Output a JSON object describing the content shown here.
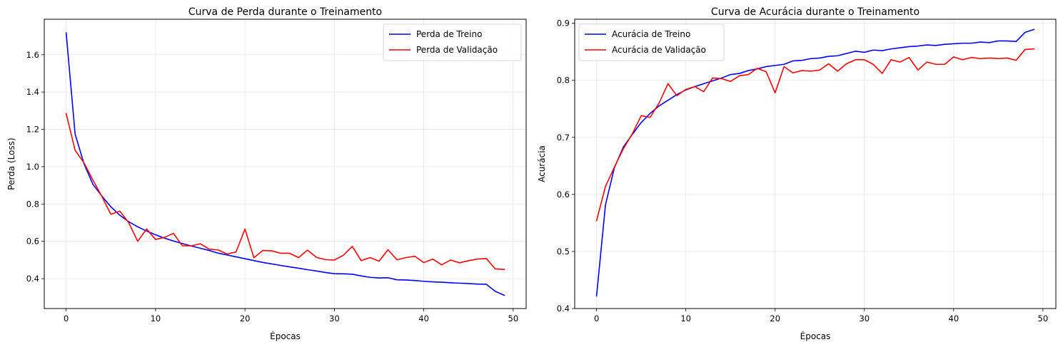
{
  "chart_data": [
    {
      "type": "line",
      "title": "Curva de Perda durante o Treinamento",
      "xlabel": "Épocas",
      "ylabel": "Perda (Loss)",
      "xlim": [
        -2.45,
        51.45
      ],
      "ylim": [
        0.24,
        1.79
      ],
      "xticks": [
        0,
        10,
        20,
        30,
        40,
        50
      ],
      "yticks": [
        0.4,
        0.6,
        0.8,
        1.0,
        1.2,
        1.4,
        1.6
      ],
      "ytick_labels": [
        "0.4",
        "0.6",
        "0.8",
        "1.0",
        "1.2",
        "1.4",
        "1.6"
      ],
      "grid": true,
      "legend": "upper-right",
      "x": [
        0,
        1,
        2,
        3,
        4,
        5,
        6,
        7,
        8,
        9,
        10,
        11,
        12,
        13,
        14,
        15,
        16,
        17,
        18,
        19,
        20,
        21,
        22,
        23,
        24,
        25,
        26,
        27,
        28,
        29,
        30,
        31,
        32,
        33,
        34,
        35,
        36,
        37,
        38,
        39,
        40,
        41,
        42,
        43,
        44,
        45,
        46,
        47,
        48,
        49
      ],
      "series": [
        {
          "name": "Perda de Treino",
          "color": "#0000ff",
          "values": [
            1.717,
            1.175,
            1.015,
            0.905,
            0.842,
            0.785,
            0.74,
            0.705,
            0.678,
            0.655,
            0.635,
            0.617,
            0.602,
            0.588,
            0.575,
            0.563,
            0.551,
            0.537,
            0.527,
            0.517,
            0.507,
            0.497,
            0.487,
            0.479,
            0.471,
            0.463,
            0.456,
            0.448,
            0.441,
            0.433,
            0.427,
            0.426,
            0.424,
            0.415,
            0.407,
            0.404,
            0.405,
            0.394,
            0.393,
            0.39,
            0.386,
            0.383,
            0.381,
            0.378,
            0.376,
            0.374,
            0.371,
            0.37,
            0.332,
            0.311
          ]
        },
        {
          "name": "Perda de Validação",
          "color": "#ff0000",
          "values": [
            1.285,
            1.088,
            1.02,
            0.928,
            0.84,
            0.745,
            0.762,
            0.7,
            0.6,
            0.666,
            0.61,
            0.621,
            0.643,
            0.576,
            0.576,
            0.587,
            0.558,
            0.554,
            0.532,
            0.543,
            0.666,
            0.512,
            0.551,
            0.549,
            0.536,
            0.536,
            0.513,
            0.553,
            0.514,
            0.502,
            0.5,
            0.525,
            0.573,
            0.497,
            0.513,
            0.494,
            0.555,
            0.501,
            0.513,
            0.52,
            0.486,
            0.505,
            0.474,
            0.5,
            0.485,
            0.496,
            0.505,
            0.508,
            0.452,
            0.45
          ]
        }
      ]
    },
    {
      "type": "line",
      "title": "Curva de Acurácia durante o Treinamento",
      "xlabel": "Épocas",
      "ylabel": "Acurácia",
      "xlim": [
        -2.45,
        51.45
      ],
      "ylim": [
        0.4,
        0.907
      ],
      "xticks": [
        0,
        10,
        20,
        30,
        40,
        50
      ],
      "yticks": [
        0.4,
        0.5,
        0.6,
        0.7,
        0.8,
        0.9
      ],
      "ytick_labels": [
        "0.4",
        "0.5",
        "0.6",
        "0.7",
        "0.8",
        "0.9"
      ],
      "grid": true,
      "legend": "upper-left",
      "x": [
        0,
        1,
        2,
        3,
        4,
        5,
        6,
        7,
        8,
        9,
        10,
        11,
        12,
        13,
        14,
        15,
        16,
        17,
        18,
        19,
        20,
        21,
        22,
        23,
        24,
        25,
        26,
        27,
        28,
        29,
        30,
        31,
        32,
        33,
        34,
        35,
        36,
        37,
        38,
        39,
        40,
        41,
        42,
        43,
        44,
        45,
        46,
        47,
        48,
        49
      ],
      "series": [
        {
          "name": "Acurácia de Treino",
          "color": "#0000ff",
          "values": [
            0.422,
            0.582,
            0.647,
            0.683,
            0.705,
            0.726,
            0.742,
            0.755,
            0.765,
            0.775,
            0.783,
            0.789,
            0.794,
            0.799,
            0.804,
            0.81,
            0.812,
            0.817,
            0.82,
            0.824,
            0.826,
            0.828,
            0.834,
            0.835,
            0.838,
            0.839,
            0.842,
            0.843,
            0.847,
            0.851,
            0.849,
            0.853,
            0.852,
            0.855,
            0.857,
            0.859,
            0.86,
            0.862,
            0.861,
            0.863,
            0.864,
            0.865,
            0.865,
            0.867,
            0.866,
            0.869,
            0.869,
            0.868,
            0.884,
            0.889
          ]
        },
        {
          "name": "Acurácia de Validação",
          "color": "#ff0000",
          "values": [
            0.554,
            0.614,
            0.648,
            0.68,
            0.706,
            0.738,
            0.735,
            0.76,
            0.794,
            0.773,
            0.784,
            0.789,
            0.78,
            0.804,
            0.803,
            0.798,
            0.808,
            0.81,
            0.821,
            0.815,
            0.778,
            0.824,
            0.813,
            0.817,
            0.816,
            0.818,
            0.829,
            0.816,
            0.829,
            0.836,
            0.836,
            0.828,
            0.812,
            0.836,
            0.832,
            0.84,
            0.818,
            0.832,
            0.828,
            0.828,
            0.841,
            0.836,
            0.84,
            0.838,
            0.839,
            0.838,
            0.839,
            0.835,
            0.854,
            0.855
          ]
        }
      ]
    }
  ]
}
